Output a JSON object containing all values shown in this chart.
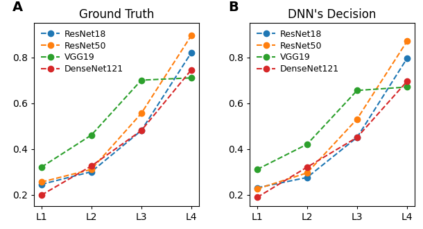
{
  "panel_A": {
    "title": "Ground Truth",
    "label": "A",
    "x_labels": [
      "L1",
      "L2",
      "L3",
      "L4"
    ],
    "series": {
      "ResNet18": [
        0.245,
        0.3,
        0.48,
        0.82
      ],
      "ResNet50": [
        0.255,
        0.31,
        0.555,
        0.895
      ],
      "VGG19": [
        0.32,
        0.46,
        0.7,
        0.71
      ],
      "DenseNet121": [
        0.198,
        0.325,
        0.48,
        0.745
      ]
    }
  },
  "panel_B": {
    "title": "DNN's Decision",
    "label": "B",
    "x_labels": [
      "L1",
      "L2",
      "L3",
      "L4"
    ],
    "series": {
      "ResNet18": [
        0.23,
        0.275,
        0.45,
        0.795
      ],
      "ResNet50": [
        0.225,
        0.295,
        0.53,
        0.87
      ],
      "VGG19": [
        0.31,
        0.42,
        0.655,
        0.67
      ],
      "DenseNet121": [
        0.188,
        0.32,
        0.45,
        0.695
      ]
    }
  },
  "colors": {
    "ResNet18": "#1f77b4",
    "ResNet50": "#ff7f0e",
    "VGG19": "#2ca02c",
    "DenseNet121": "#d62728"
  },
  "ylim": [
    0.15,
    0.95
  ],
  "yticks": [
    0.2,
    0.4,
    0.6,
    0.8
  ],
  "figsize": [
    6.1,
    3.3
  ],
  "dpi": 100,
  "label_fontsize": 14,
  "title_fontsize": 12,
  "tick_fontsize": 10,
  "legend_fontsize": 9,
  "marker_size": 6,
  "line_width": 1.5
}
